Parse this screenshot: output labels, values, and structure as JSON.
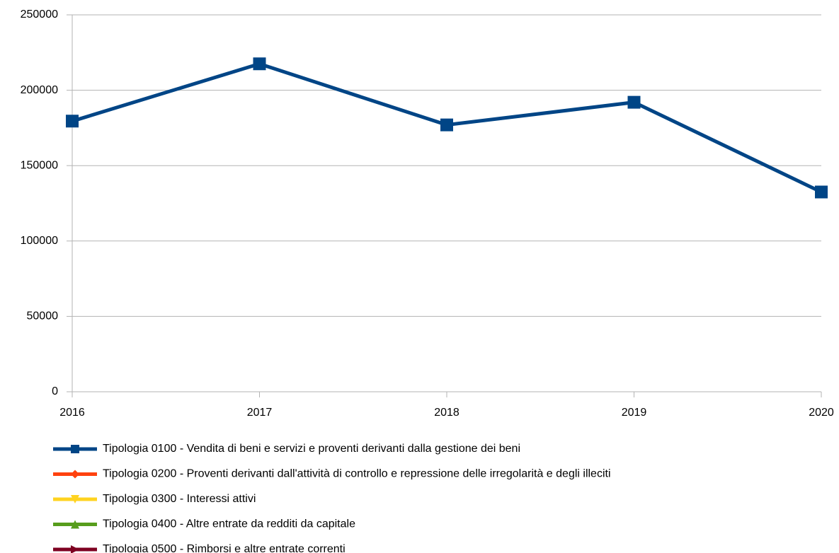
{
  "chart_data": {
    "type": "line",
    "categories": [
      "2016",
      "2017",
      "2018",
      "2019",
      "2020"
    ],
    "series": [
      {
        "name": "Tipologia 0100 - Vendita di beni e servizi e proventi derivanti dalla gestione dei beni",
        "color": "#004586",
        "marker": "square",
        "values": [
          179500,
          217500,
          177000,
          192000,
          132500
        ]
      },
      {
        "name": "Tipologia 0200 - Proventi derivanti dall'attività di controllo e repressione delle irregolarità e degli illeciti",
        "color": "#ff420e",
        "marker": "diamond",
        "values": [
          null,
          null,
          null,
          null,
          null
        ]
      },
      {
        "name": "Tipologia 0300 - Interessi attivi",
        "color": "#ffd320",
        "marker": "triangle-down",
        "values": [
          null,
          null,
          null,
          null,
          null
        ]
      },
      {
        "name": "Tipologia 0400 - Altre entrate da redditi da capitale",
        "color": "#579d1c",
        "marker": "triangle-up",
        "values": [
          null,
          null,
          null,
          null,
          null
        ]
      },
      {
        "name": "Tipologia 0500 - Rimborsi e altre entrate correnti",
        "color": "#7e0021",
        "marker": "arrow-right",
        "values": [
          null,
          null,
          null,
          null,
          null
        ]
      }
    ],
    "ylim": [
      0,
      250000
    ],
    "yticks": [
      0,
      50000,
      100000,
      150000,
      200000,
      250000
    ],
    "grid": true,
    "legend": "bottom"
  }
}
